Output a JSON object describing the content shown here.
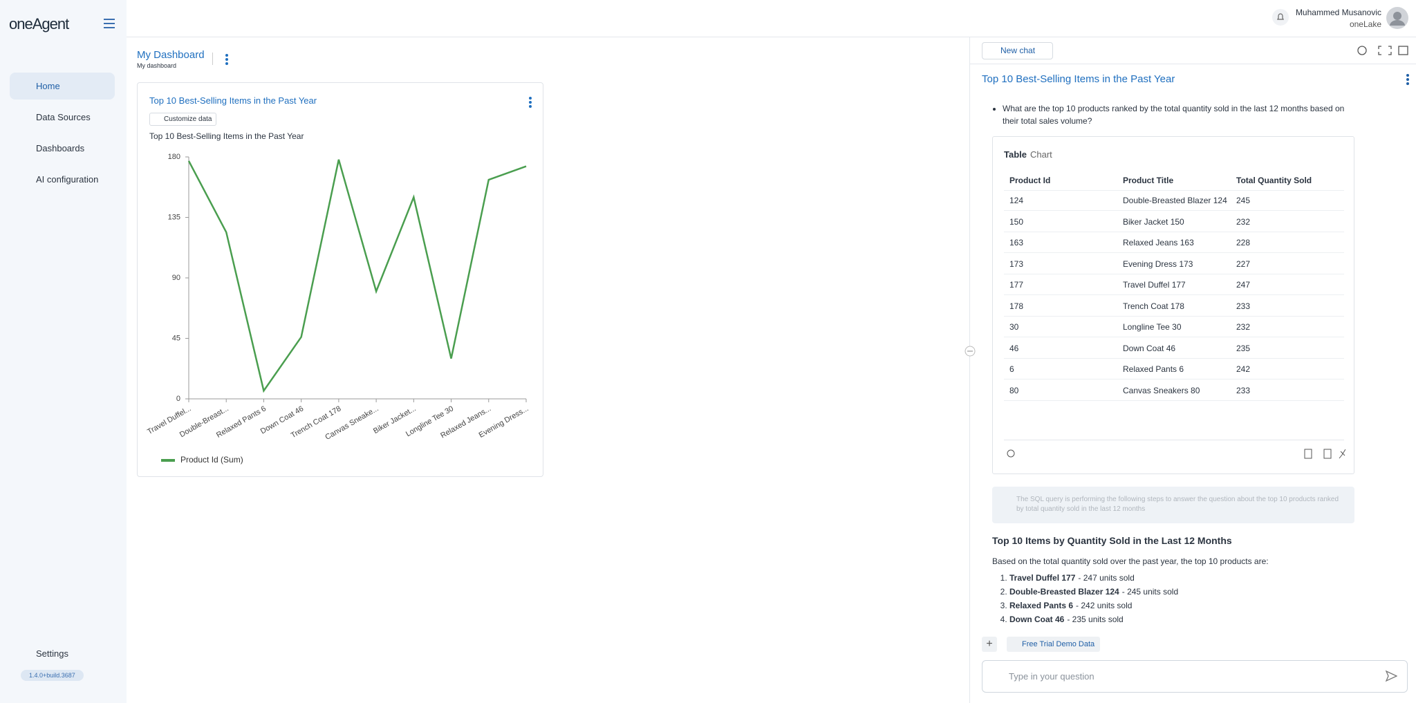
{
  "header": {
    "logo": "oneAgent",
    "user_name": "Muhammed Musanovic",
    "org": "oneLake"
  },
  "nav": {
    "items": [
      "Home",
      "Data Sources",
      "Dashboards",
      "AI configuration"
    ],
    "settings": "Settings",
    "version": "1.4.0+build.3687"
  },
  "dashboard": {
    "title": "My Dashboard",
    "subtitle": "My dashboard"
  },
  "widget": {
    "title": "Top 10 Best-Selling Items in the Past Year",
    "button": "Customize data"
  },
  "chart_data": {
    "type": "line",
    "title": "Top 10 Best-Selling Items in the Past Year",
    "categories": [
      "Travel Duffel...",
      "Double-Breast...",
      "Relaxed Pants 6",
      "Down Coat 46",
      "Trench Coat 178",
      "Canvas Sneake...",
      "Biker Jacket...",
      "Longline Tee 30",
      "Relaxed Jeans...",
      "Evening Dress..."
    ],
    "series": [
      {
        "name": "Product Id (Sum)",
        "color": "#4a9e4f",
        "values": [
          177,
          124,
          6,
          46,
          178,
          80,
          150,
          30,
          163,
          173
        ]
      }
    ],
    "ylim": [
      0,
      180
    ],
    "yticks": [
      0,
      45,
      90,
      135,
      180
    ],
    "grid": false,
    "legend": "bottom-left"
  },
  "chat": {
    "new_chat": "New chat",
    "title": "Top 10 Best-Selling Items in the Past Year",
    "question": "What are the top 10 products ranked by the total quantity sold in the last 12 months based on their total sales volume?",
    "tabs": [
      "Table",
      "Chart"
    ],
    "table": {
      "columns": [
        "Product Id",
        "Product Title",
        "Total Quantity Sold"
      ],
      "rows": [
        [
          "124",
          "Double-Breasted Blazer 124",
          "245"
        ],
        [
          "150",
          "Biker Jacket 150",
          "232"
        ],
        [
          "163",
          "Relaxed Jeans 163",
          "228"
        ],
        [
          "173",
          "Evening Dress 173",
          "227"
        ],
        [
          "177",
          "Travel Duffel 177",
          "247"
        ],
        [
          "178",
          "Trench Coat 178",
          "233"
        ],
        [
          "30",
          "Longline Tee 30",
          "232"
        ],
        [
          "46",
          "Down Coat 46",
          "235"
        ],
        [
          "6",
          "Relaxed Pants 6",
          "242"
        ],
        [
          "80",
          "Canvas Sneakers 80",
          "233"
        ]
      ]
    },
    "sql_note": "The SQL query is performing the following steps to answer the question about the top 10 products ranked by total quantity sold in the last 12 months",
    "answer_title": "Top 10 Items by Quantity Sold in the Last 12 Months",
    "answer_intro": "Based on the total quantity sold over the past year, the top 10 products are:",
    "answer_items": [
      {
        "name": "Travel Duffel 177",
        "detail": "- 247 units sold"
      },
      {
        "name": "Double-Breasted Blazer 124",
        "detail": "- 245 units sold"
      },
      {
        "name": "Relaxed Pants 6",
        "detail": "- 242 units sold"
      },
      {
        "name": "Down Coat 46",
        "detail": "- 235 units sold"
      }
    ],
    "source_chip": "Free Trial Demo Data",
    "input_placeholder": "Type in your question"
  }
}
